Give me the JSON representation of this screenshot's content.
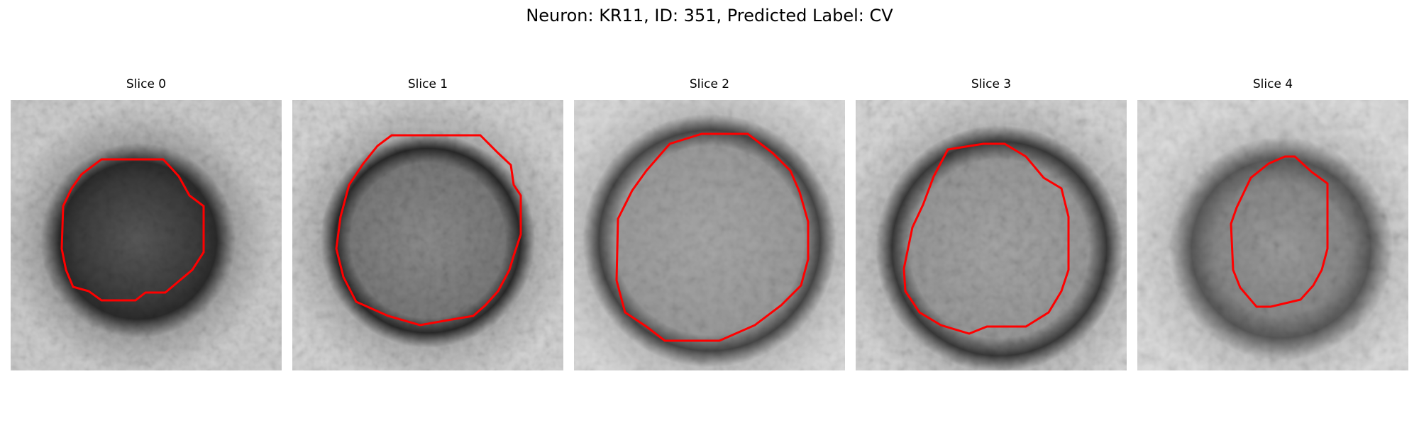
{
  "figure": {
    "title": "Neuron: KR11, ID: 351, Predicted Label: CV"
  },
  "contour_color": "#ff0000",
  "panels": [
    {
      "title": "Slice 0"
    },
    {
      "title": "Slice 1"
    },
    {
      "title": "Slice 2"
    },
    {
      "title": "Slice 3"
    },
    {
      "title": "Slice 4"
    }
  ]
}
